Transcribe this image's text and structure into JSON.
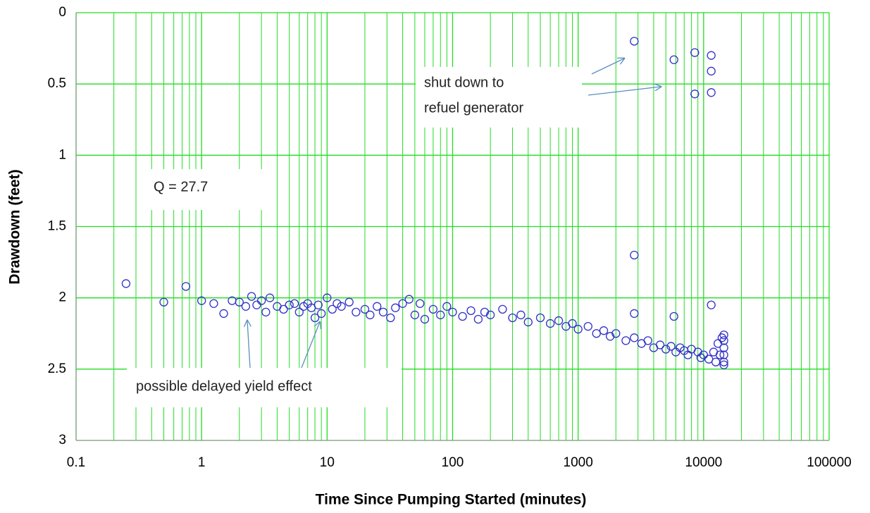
{
  "chart_data": {
    "type": "scatter",
    "x_label": "Time Since Pumping Started (minutes)",
    "y_label": "Drawdown (feet)",
    "xlim": [
      0.1,
      100000
    ],
    "xticks": [
      0.1,
      1,
      10,
      100,
      1000,
      10000,
      100000
    ],
    "x_log": true,
    "ylim": [
      0,
      3
    ],
    "yticks": [
      0,
      0.5,
      1,
      1.5,
      2,
      2.5,
      3
    ],
    "y_inverted": true,
    "grid": true,
    "minor_grid": true,
    "grid_color": "#22dd22",
    "color": "#3030c8",
    "annotations": {
      "shutdown": [
        "shut down to",
        "refuel generator"
      ],
      "q": "Q = 27.7",
      "delayed": "possible delayed yield effect"
    },
    "x": [
      0.25,
      0.5,
      0.75,
      1,
      1.25,
      1.5,
      1.75,
      2,
      2.25,
      2.5,
      2.75,
      3,
      3.25,
      3.5,
      4,
      4.5,
      5,
      5.5,
      6,
      6.5,
      7,
      7.5,
      8,
      8.5,
      9,
      10,
      11,
      12,
      13,
      15,
      17,
      20,
      22,
      25,
      28,
      32,
      35,
      40,
      45,
      50,
      55,
      60,
      70,
      80,
      90,
      100,
      120,
      140,
      160,
      180,
      200,
      250,
      300,
      350,
      400,
      500,
      600,
      700,
      800,
      900,
      1000,
      1200,
      1400,
      1600,
      1800,
      2000,
      2400,
      2800,
      2800,
      2800,
      2800,
      3200,
      3600,
      4000,
      4500,
      5000,
      5500,
      5800,
      5800,
      6000,
      6500,
      7000,
      7500,
      8000,
      8500,
      8500,
      9000,
      9500,
      10000,
      11000,
      11500,
      11500,
      11500,
      11500,
      12000,
      12500,
      13000,
      13500,
      14000,
      14500,
      14500,
      14500,
      14500,
      14500,
      14500
    ],
    "y": [
      1.9,
      2.03,
      1.92,
      2.02,
      2.04,
      2.11,
      2.02,
      2.03,
      2.06,
      1.99,
      2.05,
      2.02,
      2.1,
      2.0,
      2.06,
      2.08,
      2.05,
      2.04,
      2.1,
      2.06,
      2.04,
      2.07,
      2.14,
      2.05,
      2.11,
      2.0,
      2.08,
      2.04,
      2.06,
      2.03,
      2.1,
      2.08,
      2.12,
      2.06,
      2.1,
      2.14,
      2.07,
      2.04,
      2.01,
      2.12,
      2.04,
      2.15,
      2.08,
      2.12,
      2.06,
      2.1,
      2.13,
      2.09,
      2.15,
      2.1,
      2.12,
      2.08,
      2.14,
      2.12,
      2.17,
      2.14,
      2.18,
      2.16,
      2.2,
      2.18,
      2.22,
      2.2,
      2.25,
      2.23,
      2.27,
      2.25,
      2.3,
      2.28,
      0.2,
      1.7,
      2.11,
      2.32,
      2.3,
      2.35,
      2.33,
      2.36,
      2.34,
      0.33,
      2.13,
      2.38,
      2.35,
      2.37,
      2.4,
      2.36,
      0.28,
      0.57,
      2.38,
      2.42,
      2.4,
      2.43,
      0.3,
      0.41,
      0.56,
      2.05,
      2.38,
      2.45,
      2.32,
      2.4,
      2.28,
      2.26,
      2.3,
      2.35,
      2.4,
      2.45,
      2.47
    ]
  }
}
